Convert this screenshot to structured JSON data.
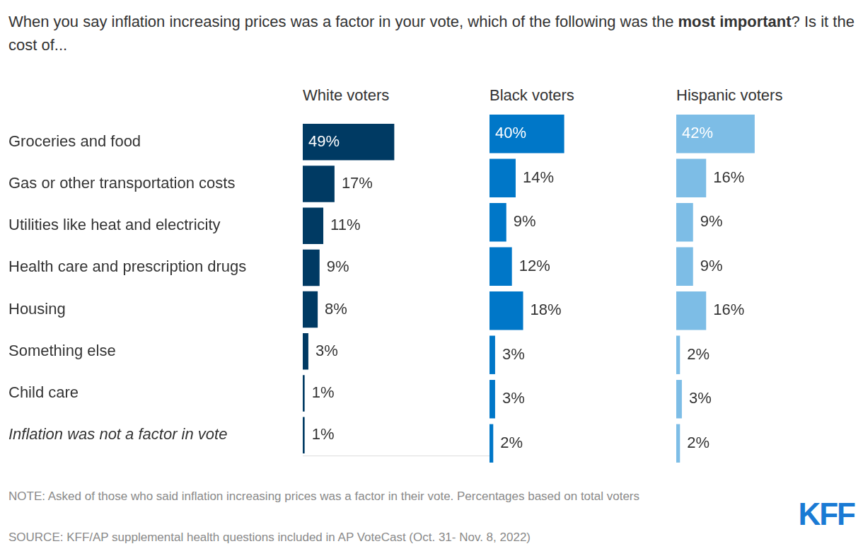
{
  "title": [
    "When you say inflation increasing prices was a factor in your vote, which of the following was the ",
    "most important",
    "? Is it the cost of..."
  ],
  "note": "NOTE: Asked of those who said inflation increasing prices was a factor in their vote. Percentages based on total voters",
  "source": "SOURCE: KFF/AP supplemental health questions included in AP VoteCast (Oct. 31- Nov. 8, 2022)",
  "logo": "KFF",
  "chart_data": [
    {
      "type": "bar",
      "orientation": "horizontal",
      "title": "White voters",
      "categories": [
        "Groceries and food",
        "Gas or other transportation costs",
        "Utilities like heat and electricity",
        "Health care and prescription drugs",
        "Housing",
        "Something else",
        "Child care",
        "Inflation was not a factor in vote"
      ],
      "values": [
        49,
        17,
        11,
        9,
        8,
        3,
        1,
        1
      ],
      "value_labels": [
        "49%",
        "17%",
        "11%",
        "9%",
        "8%",
        "3%",
        "1%",
        "1%"
      ],
      "color": "#003a63",
      "xlim": [
        0,
        100
      ],
      "grid": false,
      "data_labels": true,
      "tick_labels": "y"
    },
    {
      "type": "bar",
      "orientation": "horizontal",
      "title": "Black voters",
      "categories": [
        "Groceries and food",
        "Gas or other transportation costs",
        "Utilities like heat and electricity",
        "Health care and prescription drugs",
        "Housing",
        "Something else",
        "Child care",
        "Inflation was not a factor in vote"
      ],
      "values": [
        40,
        14,
        9,
        12,
        18,
        3,
        3,
        2
      ],
      "value_labels": [
        "40%",
        "14%",
        "9%",
        "12%",
        "18%",
        "3%",
        "3%",
        "2%"
      ],
      "color": "#0077c8",
      "xlim": [
        0,
        100
      ],
      "grid": false,
      "data_labels": true,
      "tick_labels": false
    },
    {
      "type": "bar",
      "orientation": "horizontal",
      "title": "Hispanic voters",
      "categories": [
        "Groceries and food",
        "Gas or other transportation costs",
        "Utilities like heat and electricity",
        "Health care and prescription drugs",
        "Housing",
        "Something else",
        "Child care",
        "Inflation was not a factor in vote"
      ],
      "values": [
        42,
        16,
        9,
        9,
        16,
        2,
        3,
        2
      ],
      "value_labels": [
        "42%",
        "16%",
        "9%",
        "9%",
        "16%",
        "2%",
        "3%",
        "2%"
      ],
      "color": "#7dbde6",
      "xlim": [
        0,
        100
      ],
      "grid": false,
      "data_labels": true,
      "tick_labels": false
    }
  ]
}
